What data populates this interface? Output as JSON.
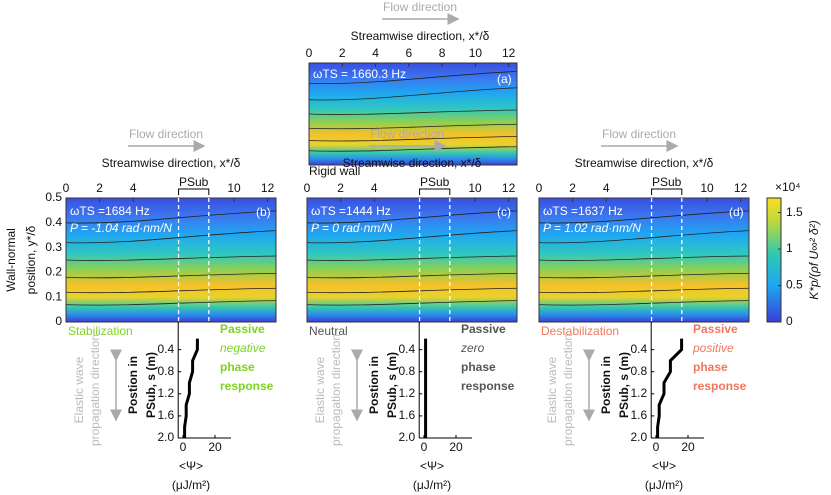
{
  "flow_direction": "Flow direction",
  "x_title": "Streamwise direction, x*/δ",
  "xlim": [
    0,
    12.5
  ],
  "top": {
    "xticks": [
      0,
      2,
      4,
      6,
      8,
      10,
      12
    ],
    "freq": "ωTS = 1660.3 Hz",
    "panel": "(a)",
    "caption": "Rigid wall"
  },
  "y_axis": {
    "label": [
      "Wall-normal",
      "position, y*/δ"
    ],
    "ylim": [
      0,
      0.5
    ],
    "yticks": [
      0,
      0.1,
      0.2,
      0.3,
      0.4,
      0.5
    ]
  },
  "bottom_xticks": [
    0,
    2,
    4,
    10,
    12
  ],
  "psub": "PSub",
  "psub_x": [
    6.7,
    8.5
  ],
  "panels": [
    {
      "freq": "ωTS =1684 Hz",
      "phase": "P = -1.04 rad·nm/N",
      "panel": "(b)",
      "regime": "Stabilization",
      "color": "#7ed321",
      "response": [
        "Passive",
        "negative",
        "phase",
        "response"
      ],
      "psi": [
        9,
        9,
        6,
        6,
        4,
        4,
        2,
        2,
        1,
        1
      ]
    },
    {
      "freq": "ωTS =1444 Hz",
      "phase": "P = 0 rad·nm/N",
      "panel": "(c)",
      "regime": "Neutral",
      "color": "#555555",
      "response": [
        "Passive",
        "zero",
        "phase",
        "response"
      ],
      "psi": [
        1,
        1,
        1,
        1,
        1,
        1,
        1,
        1,
        1,
        1
      ]
    },
    {
      "freq": "ωTS =1637 Hz",
      "phase": "P = 1.02 rad·nm/N",
      "panel": "(d)",
      "regime": "Destabilization",
      "color": "#f0775f",
      "response": [
        "Passive",
        "positive",
        "phase",
        "response"
      ],
      "psi": [
        16,
        16,
        9,
        9,
        5,
        5,
        2,
        2,
        1,
        1
      ]
    }
  ],
  "profile": {
    "s": [
      0.2,
      0.4,
      0.6,
      0.8,
      1.0,
      1.2,
      1.4,
      1.6,
      1.8,
      2.0
    ],
    "ylim": [
      -0.1,
      2.0
    ],
    "yticks": [
      0.4,
      0.8,
      1.2,
      1.6,
      {
        "value": 2,
        "label": "2.0"
      }
    ],
    "xlim": [
      -3,
      30
    ],
    "xticks": [
      0,
      20
    ],
    "ylabel": [
      "Postion in",
      "PSub, s (m)"
    ],
    "xlabel": [
      "<Ψ>",
      "(μJ/m²)"
    ],
    "side": [
      "Elastic wave",
      "propagation direction"
    ]
  },
  "colorbar": {
    "lim": [
      0,
      1.7
    ],
    "ticks": [
      0,
      0.5,
      1,
      1.5
    ],
    "multiplier": "×10⁴",
    "label": "K*p/(ρf U∞² δ²)"
  }
}
